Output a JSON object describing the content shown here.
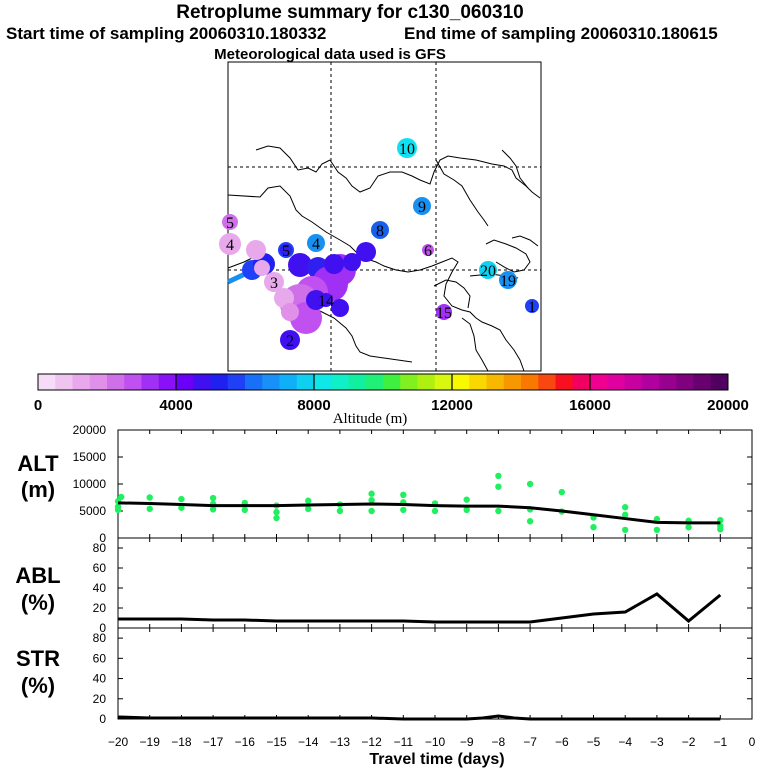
{
  "header": {
    "title": "Retroplume summary for c130_060310",
    "start": "Start time of sampling 20060310.180332",
    "end": "End time of sampling 20060310.180615",
    "met": "Meteorological data used is GFS"
  },
  "colorbar": {
    "label": "Altitude (m)",
    "ticks": [
      "0",
      "4000",
      "8000",
      "12000",
      "16000",
      "20000"
    ],
    "colors": [
      "#f6dcf6",
      "#f0c4f0",
      "#e8a8ec",
      "#e090e8",
      "#d070e8",
      "#c050f0",
      "#a030f4",
      "#8a10f8",
      "#6a00f8",
      "#4010f0",
      "#2020f0",
      "#2040f8",
      "#1870f8",
      "#1890f8",
      "#10b0f8",
      "#10d0f0",
      "#10e8e8",
      "#10f0c8",
      "#10f0a0",
      "#20f078",
      "#40f040",
      "#80f020",
      "#b0f010",
      "#d8f810",
      "#f8f800",
      "#f8d800",
      "#f8b800",
      "#f89800",
      "#f87800",
      "#f84810",
      "#f81020",
      "#f00060",
      "#f00090",
      "#e000a0",
      "#c800a0",
      "#b000a0",
      "#980090",
      "#800080",
      "#680070",
      "#500060"
    ]
  },
  "map_markers": [
    {
      "day": "10",
      "color": "#10e0f0"
    },
    {
      "day": "9",
      "color": "#1890f0"
    },
    {
      "day": "8",
      "color": "#1860e8"
    },
    {
      "day": "4",
      "color": "#1890f0"
    },
    {
      "day": "6",
      "color": "#c050f0"
    },
    {
      "day": "20",
      "color": "#10d0f0"
    },
    {
      "day": "19",
      "color": "#1890f0"
    },
    {
      "day": "1",
      "color": "#2040f8"
    },
    {
      "day": "15",
      "color": "#a030f4"
    },
    {
      "day": "5",
      "color": "#d070e8"
    },
    {
      "day": "4",
      "color": "#e8a8ec"
    },
    {
      "day": "2",
      "color": "#4010f0"
    },
    {
      "day": "3",
      "color": "#e8a8ec"
    },
    {
      "day": "14",
      "color": "#4010f0"
    },
    {
      "day": "5",
      "color": "#3020f0"
    }
  ],
  "chart_data": [
    {
      "type": "scatter",
      "name": "ALT",
      "ylabel": "ALT (m)",
      "ylim": [
        0,
        20000
      ],
      "yticks": [
        "20000",
        "15000",
        "10000",
        "5000",
        "0"
      ],
      "xlim": [
        -20,
        0
      ],
      "median_line": {
        "x": [
          -20,
          -19,
          -18,
          -17,
          -16,
          -15,
          -14,
          -13,
          -12,
          -11,
          -10,
          -9,
          -8,
          -7,
          -6,
          -5,
          -4,
          -3,
          -2,
          -1
        ],
        "y": [
          6500,
          6400,
          6200,
          6000,
          6000,
          6000,
          6100,
          6200,
          6300,
          6200,
          6000,
          5900,
          5900,
          5600,
          5000,
          4300,
          3600,
          2900,
          2800,
          2800
        ]
      },
      "points": [
        {
          "x": -20,
          "y": 5800
        },
        {
          "x": -20,
          "y": 6800
        },
        {
          "x": -20,
          "y": 5200
        },
        {
          "x": -19.9,
          "y": 7600
        },
        {
          "x": -19,
          "y": 5400
        },
        {
          "x": -19,
          "y": 7500
        },
        {
          "x": -18,
          "y": 5600
        },
        {
          "x": -18,
          "y": 7200
        },
        {
          "x": -17,
          "y": 5300
        },
        {
          "x": -17,
          "y": 7400
        },
        {
          "x": -17,
          "y": 6300
        },
        {
          "x": -16,
          "y": 5200
        },
        {
          "x": -16,
          "y": 6500
        },
        {
          "x": -15,
          "y": 4800
        },
        {
          "x": -15,
          "y": 6000
        },
        {
          "x": -15,
          "y": 3700
        },
        {
          "x": -14,
          "y": 5400
        },
        {
          "x": -14,
          "y": 6900
        },
        {
          "x": -13,
          "y": 5000
        },
        {
          "x": -13,
          "y": 6200
        },
        {
          "x": -12,
          "y": 5000
        },
        {
          "x": -12,
          "y": 7000
        },
        {
          "x": -12,
          "y": 8200
        },
        {
          "x": -11,
          "y": 5200
        },
        {
          "x": -11,
          "y": 6600
        },
        {
          "x": -11,
          "y": 8000
        },
        {
          "x": -10,
          "y": 5000
        },
        {
          "x": -10,
          "y": 6400
        },
        {
          "x": -9,
          "y": 5200
        },
        {
          "x": -9,
          "y": 7100
        },
        {
          "x": -8,
          "y": 5000
        },
        {
          "x": -8,
          "y": 9500
        },
        {
          "x": -8,
          "y": 11500
        },
        {
          "x": -7,
          "y": 5300
        },
        {
          "x": -7,
          "y": 10000
        },
        {
          "x": -7,
          "y": 3100
        },
        {
          "x": -6,
          "y": 4900
        },
        {
          "x": -6,
          "y": 8500
        },
        {
          "x": -5,
          "y": 3800
        },
        {
          "x": -5,
          "y": 2000
        },
        {
          "x": -4,
          "y": 4300
        },
        {
          "x": -4,
          "y": 5700
        },
        {
          "x": -4,
          "y": 1500
        },
        {
          "x": -3,
          "y": 3500
        },
        {
          "x": -3,
          "y": 1500
        },
        {
          "x": -2,
          "y": 3200
        },
        {
          "x": -2,
          "y": 2000
        },
        {
          "x": -1,
          "y": 3300
        },
        {
          "x": -1,
          "y": 2200
        },
        {
          "x": -1,
          "y": 1600
        }
      ]
    },
    {
      "type": "line",
      "name": "ABL",
      "ylabel": "ABL (%)",
      "ylim": [
        0,
        90
      ],
      "yticks": [
        "80",
        "60",
        "40",
        "20",
        "0"
      ],
      "xlim": [
        -20,
        0
      ],
      "x": [
        -20,
        -19,
        -18,
        -17,
        -16,
        -15,
        -14,
        -13,
        -12,
        -11,
        -10,
        -9,
        -8,
        -7,
        -6,
        -5,
        -4,
        -3,
        -2,
        -1
      ],
      "y": [
        9,
        9,
        9,
        8,
        8,
        7,
        7,
        7,
        7,
        7,
        6,
        6,
        6,
        6,
        10,
        14,
        16,
        34,
        7,
        33
      ]
    },
    {
      "type": "line",
      "name": "STR",
      "ylabel": "STR (%)",
      "ylim": [
        0,
        90
      ],
      "yticks": [
        "80",
        "60",
        "40",
        "20",
        "0"
      ],
      "xlim": [
        -20,
        0
      ],
      "x": [
        -20,
        -19,
        -18,
        -17,
        -16,
        -15,
        -14,
        -13,
        -12,
        -11,
        -10,
        -9,
        -8.5,
        -8,
        -7.5,
        -7,
        -6,
        -5,
        -4,
        -3,
        -2,
        -1
      ],
      "y": [
        2,
        1,
        1,
        1,
        1,
        1,
        1,
        1,
        1,
        0,
        0,
        0,
        1,
        3,
        1,
        0,
        0,
        0,
        0,
        0,
        0,
        0
      ]
    }
  ],
  "xaxis": {
    "title": "Travel time (days)",
    "ticks": [
      "−20",
      "−19",
      "−18",
      "−17",
      "−16",
      "−15",
      "−14",
      "−13",
      "−12",
      "−11",
      "−10",
      "−9",
      "−8",
      "−7",
      "−6",
      "−5",
      "−4",
      "−3",
      "−2",
      "−1",
      "0"
    ]
  }
}
